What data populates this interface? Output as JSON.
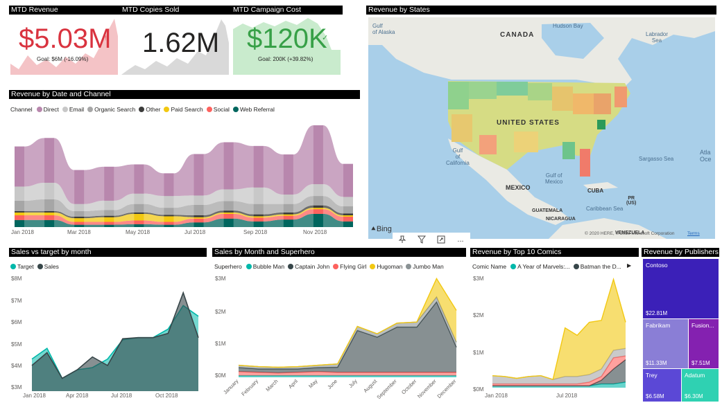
{
  "kpis": [
    {
      "title": "MTD Revenue",
      "value": "$5.03M",
      "mark": "!",
      "goal": "Goal: $6M (-16.09%)",
      "color": "#d9333f",
      "area_color": "#f4c3c6"
    },
    {
      "title": "MTD Copies Sold",
      "value": "1.62M",
      "color": "#252423",
      "area_color": "#d9d9d9"
    },
    {
      "title": "MTD Campaign Cost",
      "value": "$120K",
      "mark": "✓",
      "goal": "Goal: 200K (+39.82%)",
      "color": "#37a047",
      "area_color": "#c9ebcd"
    }
  ],
  "map": {
    "title": "Revenue by States",
    "labels": {
      "alaska": "Gulf\nof Alaska",
      "canada": "CANADA",
      "hudson": "Hudson Bay",
      "labrador": "Labrador\nSea",
      "us": "UNITED STATES",
      "gulf_ca": "Gulf\nof\nCalifornia",
      "gulf_mx": "Gulf of\nMexico",
      "mexico": "MEXICO",
      "cuba": "CUBA",
      "sargasso": "Sargasso Sea",
      "pr": "PR\n(US)",
      "caribbean": "Caribbean Sea",
      "guatemala": "GUATEMALA",
      "nicaragua": "NICARAGUA",
      "venezuela": "VENEZUELA",
      "atlantic": "Atla\nOce"
    },
    "bing": "Bing",
    "copyright": "© 2020 HERE, © 2020 Microsoft Corporation",
    "terms": "Terms",
    "toolbar": [
      "pin-icon",
      "filter-icon",
      "expand-icon",
      "more-icon"
    ],
    "more_label": "..."
  },
  "revenue_by_date": {
    "title": "Revenue by Date and Channel",
    "legend_title": "Channel",
    "x_labels": [
      "Jan 2018",
      "Mar 2018",
      "May 2018",
      "Jul 2018",
      "Sep 2018",
      "Nov 2018"
    ]
  },
  "sales_vs_target": {
    "title": "Sales vs target by month",
    "y_labels": [
      "$8M",
      "$7M",
      "$6M",
      "$5M",
      "$4M",
      "$3M"
    ],
    "x_labels": [
      "Jan 2018",
      "Apr 2018",
      "Jul 2018",
      "Oct 2018"
    ]
  },
  "sales_by_superhero": {
    "title": "Sales by Month and Superhero",
    "legend_title": "Superhero",
    "y_labels": [
      "$3M",
      "$2M",
      "$1M",
      "$0M"
    ]
  },
  "top_comics": {
    "title": "Revenue by Top 10 Comics",
    "legend_title": "Comic Name",
    "y_labels": [
      "$3M",
      "$2M",
      "$1M",
      "$0M"
    ],
    "x_labels": [
      "Jan 2018",
      "Jul 2018"
    ],
    "more_arrow": "▶"
  },
  "publishers": {
    "title": "Revenue by Publishers",
    "tiles": [
      {
        "name": "Contoso",
        "value": "$22.81M",
        "color": "#3b20b8"
      },
      {
        "name": "Fabrikam",
        "value": "$11.33M",
        "color": "#8a7ed6"
      },
      {
        "name": "Fusion...",
        "value": "$7.51M",
        "color": "#8421b0"
      },
      {
        "name": "Trey",
        "value": "$6.58M",
        "color": "#5b48d6"
      },
      {
        "name": "Adatum",
        "value": "$6.30M",
        "color": "#2fd1b2"
      }
    ]
  },
  "chart_data": [
    {
      "type": "area",
      "title": "Revenue by Date and Channel",
      "stacking": "ribbon",
      "categories": [
        "Jan 2018",
        "Feb 2018",
        "Mar 2018",
        "Apr 2018",
        "May 2018",
        "Jun 2018",
        "Jul 2018",
        "Aug 2018",
        "Sep 2018",
        "Oct 2018",
        "Nov 2018",
        "Dec 2018"
      ],
      "series": [
        {
          "name": "Direct",
          "color": "#b887ad",
          "values": [
            0.85,
            0.95,
            0.72,
            0.72,
            0.62,
            0.48,
            0.88,
            1.0,
            0.88,
            0.85,
            1.25,
            0.7
          ]
        },
        {
          "name": "Email",
          "color": "#c8c8c8",
          "values": [
            0.3,
            0.35,
            0.15,
            0.2,
            0.22,
            0.25,
            0.2,
            0.25,
            0.35,
            0.2,
            0.25,
            0.2
          ]
        },
        {
          "name": "Organic Search",
          "color": "#a6a6a6",
          "values": [
            0.22,
            0.25,
            0.12,
            0.12,
            0.18,
            0.15,
            0.22,
            0.2,
            0.22,
            0.18,
            0.2,
            0.15
          ]
        },
        {
          "name": "Other",
          "color": "#3c3c3b",
          "values": [
            0.03,
            0.03,
            0.03,
            0.03,
            0.03,
            0.03,
            0.04,
            0.04,
            0.04,
            0.04,
            0.05,
            0.04
          ]
        },
        {
          "name": "Paid Search",
          "color": "#f2c811",
          "values": [
            0.06,
            0.06,
            0.08,
            0.1,
            0.14,
            0.12,
            0.03,
            0.03,
            0.03,
            0.03,
            0.03,
            0.03
          ]
        },
        {
          "name": "Social",
          "color": "#fd625e",
          "values": [
            0.1,
            0.1,
            0.06,
            0.06,
            0.08,
            0.06,
            0.08,
            0.1,
            0.08,
            0.08,
            0.1,
            0.1
          ]
        },
        {
          "name": "Web Referral",
          "color": "#01665e",
          "values": [
            0.15,
            0.15,
            0.05,
            0.05,
            0.06,
            0.05,
            0.1,
            0.18,
            0.12,
            0.16,
            0.28,
            0.12
          ]
        }
      ]
    },
    {
      "type": "area",
      "title": "Sales vs target by month",
      "categories": [
        "Jan 2018",
        "Feb 2018",
        "Mar 2018",
        "Apr 2018",
        "May 2018",
        "Jun 2018",
        "Jul 2018",
        "Aug 2018",
        "Sep 2018",
        "Oct 2018",
        "Nov 2018",
        "Dec 2018"
      ],
      "ylim": [
        2.5,
        8
      ],
      "series": [
        {
          "name": "Target",
          "color": "#01b8aa",
          "values": [
            4.0,
            4.5,
            3.1,
            3.5,
            3.6,
            4.0,
            4.9,
            5.0,
            5.0,
            5.4,
            6.5,
            6.0
          ]
        },
        {
          "name": "Sales",
          "color": "#374649",
          "values": [
            3.7,
            4.3,
            3.1,
            3.5,
            4.1,
            3.7,
            4.95,
            5.0,
            5.0,
            5.2,
            7.1,
            5.0
          ]
        }
      ]
    },
    {
      "type": "area",
      "title": "Sales by Month and Superhero",
      "categories": [
        "January",
        "February",
        "March",
        "April",
        "May",
        "June",
        "July",
        "August",
        "September",
        "October",
        "November",
        "December"
      ],
      "ylim": [
        0,
        3
      ],
      "series": [
        {
          "name": "Bubble Man",
          "color": "#01b8aa",
          "values": [
            0.05,
            0.05,
            0.05,
            0.05,
            0.05,
            0.05,
            0.05,
            0.05,
            0.05,
            0.05,
            0.05,
            0.05
          ]
        },
        {
          "name": "Captain John",
          "color": "#374649",
          "values": [
            0.12,
            0.1,
            0.12,
            0.1,
            0.12,
            0.15,
            1.25,
            1.05,
            1.35,
            1.35,
            2.1,
            0.75
          ]
        },
        {
          "name": "Flying Girl",
          "color": "#fd625e",
          "values": [
            0.12,
            0.1,
            0.08,
            0.1,
            0.12,
            0.1,
            0.1,
            0.1,
            0.1,
            0.1,
            0.1,
            0.1
          ]
        },
        {
          "name": "Hugoman",
          "color": "#f2c811",
          "values": [
            0.0,
            0.0,
            0.0,
            0.0,
            0.0,
            0.0,
            0.0,
            0.0,
            0.0,
            0.0,
            0.55,
            0.95
          ]
        },
        {
          "name": "Jumbo Man",
          "color": "#8a9294",
          "values": [
            0.07,
            0.07,
            0.05,
            0.07,
            0.07,
            0.1,
            0.12,
            0.1,
            0.12,
            0.15,
            0.15,
            0.15
          ]
        }
      ]
    },
    {
      "type": "area",
      "title": "Revenue by Top 10 Comics",
      "categories": [
        "Jan 2018",
        "Feb 2018",
        "Mar 2018",
        "Apr 2018",
        "May 2018",
        "Jun 2018",
        "Jul 2018",
        "Aug 2018",
        "Sep 2018",
        "Oct 2018",
        "Nov 2018",
        "Dec 2018"
      ],
      "ylim": [
        0,
        3
      ],
      "series": [
        {
          "name": "A Year of Marvels:...",
          "color": "#01b8aa",
          "values": [
            0.05,
            0.05,
            0.05,
            0.05,
            0.05,
            0.05,
            0.05,
            0.05,
            0.05,
            0.1,
            0.1,
            0.15
          ]
        },
        {
          "name": "Batman the D...",
          "color": "#374649",
          "values": [
            0.0,
            0.0,
            0.0,
            0.0,
            0.0,
            0.0,
            0.0,
            0.0,
            0.0,
            0.1,
            0.4,
            0.6
          ]
        },
        {
          "name": "",
          "color": "#fd625e",
          "values": [
            0.05,
            0.05,
            0.05,
            0.05,
            0.05,
            0.05,
            0.05,
            0.05,
            0.1,
            0.1,
            0.3,
            0.1
          ]
        },
        {
          "name": "",
          "color": "#f2c811",
          "values": [
            0.0,
            0.0,
            0.0,
            0.0,
            0.0,
            0.0,
            1.3,
            1.1,
            1.4,
            1.3,
            1.9,
            0.7
          ]
        },
        {
          "name": "",
          "color": "#a6a6a6",
          "values": [
            0.22,
            0.2,
            0.15,
            0.2,
            0.22,
            0.12,
            0.2,
            0.2,
            0.2,
            0.2,
            0.2,
            0.2
          ]
        }
      ]
    },
    {
      "type": "treemap",
      "title": "Revenue by Publishers",
      "categories": [
        "Contoso",
        "Fabrikam",
        "Fusion...",
        "Trey",
        "Adatum"
      ],
      "values": [
        22.81,
        11.33,
        7.51,
        6.58,
        6.3
      ]
    }
  ]
}
